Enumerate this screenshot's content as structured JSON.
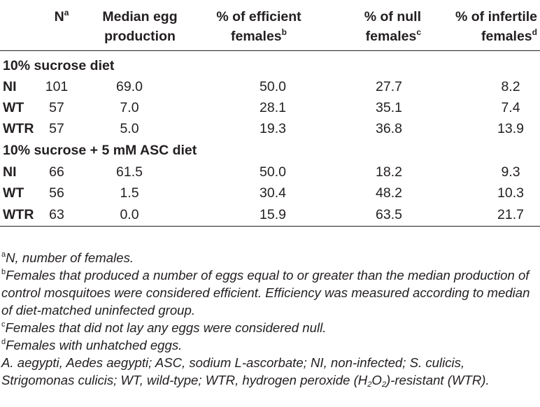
{
  "table": {
    "headers": [
      {
        "text": "",
        "sup": ""
      },
      {
        "text": "N",
        "sup": "a"
      },
      {
        "line1": "Median egg",
        "line2": "production",
        "sup": ""
      },
      {
        "line1": "% of efficient",
        "line2": "females",
        "sup": "b"
      },
      {
        "line1": "% of null",
        "line2": "females",
        "sup": "c"
      },
      {
        "line1": "% of infertile",
        "line2": "females",
        "sup": "d"
      }
    ],
    "sections": [
      {
        "title": "10% sucrose diet",
        "rows": [
          {
            "label": "NI",
            "n": "101",
            "median": "69.0",
            "efficient": "50.0",
            "null": "27.7",
            "infertile": "8.2"
          },
          {
            "label": "WT",
            "n": "57",
            "median": "7.0",
            "efficient": "28.1",
            "null": "35.1",
            "infertile": "7.4"
          },
          {
            "label": "WTR",
            "n": "57",
            "median": "5.0",
            "efficient": "19.3",
            "null": "36.8",
            "infertile": "13.9"
          }
        ]
      },
      {
        "title": "10% sucrose + 5 mM ASC diet",
        "rows": [
          {
            "label": "NI",
            "n": "66",
            "median": "61.5",
            "efficient": "50.0",
            "null": "18.2",
            "infertile": "9.3"
          },
          {
            "label": "WT",
            "n": "56",
            "median": "1.5",
            "efficient": "30.4",
            "null": "48.2",
            "infertile": "10.3"
          },
          {
            "label": "WTR",
            "n": "63",
            "median": "0.0",
            "efficient": "15.9",
            "null": "63.5",
            "infertile": "21.7"
          }
        ]
      }
    ]
  },
  "footnotes": {
    "a": {
      "mark": "a",
      "text": "N, number of females."
    },
    "b": {
      "mark": "b",
      "text": "Females that produced a number of eggs equal to or greater than the median production of control mosquitoes were considered efficient. Efficiency was measured according to median of diet-matched uninfected group."
    },
    "c": {
      "mark": "c",
      "text": "Females that did not lay any eggs were considered null."
    },
    "d": {
      "mark": "d",
      "text": "Females with unhatched eggs."
    },
    "abbrev": {
      "before": "A. aegypti, Aedes aegypti; ASC, sodium L-ascorbate; NI, non-infected; S. culicis, Strigomonas culicis; WT, wild-type; WTR, hydrogen peroxide (H",
      "sub1": "2",
      "mid": "O",
      "sub2": "2",
      "after": ")-resistant (WTR)."
    }
  }
}
